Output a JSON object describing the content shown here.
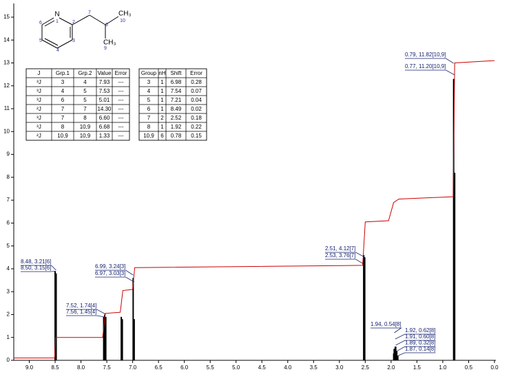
{
  "chart_data": {
    "type": "nmr",
    "xlim": [
      9.3,
      0
    ],
    "xticks": [
      {
        "value": 9,
        "label": "9.0"
      },
      8.5,
      {
        "value": 8,
        "label": "8.0"
      },
      7.5,
      {
        "value": 7,
        "label": "7.0"
      },
      6.5,
      {
        "value": 6,
        "label": "6.0"
      },
      5.5,
      {
        "value": 5,
        "label": "5.0"
      },
      4.5,
      {
        "value": 4,
        "label": "4.0"
      },
      3.5,
      {
        "value": 3,
        "label": "3.0"
      },
      2.5,
      {
        "value": 2,
        "label": "2.0"
      },
      1.5,
      {
        "value": 1,
        "label": "1.0"
      },
      0.5,
      {
        "value": 0,
        "label": "0.0"
      }
    ],
    "ylim": [
      0,
      15.6
    ],
    "yticks": [
      0,
      1,
      2,
      3,
      4,
      5,
      6,
      7,
      8,
      9,
      10,
      11,
      12,
      13,
      14,
      15
    ],
    "grid": false,
    "series": [
      {
        "style": "sticks",
        "color": "#000000",
        "x": [
          8.5,
          8.48,
          7.56,
          7.54,
          7.52,
          7.22,
          7.2,
          6.99,
          6.97,
          2.53,
          2.51,
          1.95,
          1.94,
          1.92,
          1.91,
          1.89,
          1.87,
          0.79,
          0.77
        ],
        "values": [
          3.9,
          3.8,
          1.9,
          2.0,
          1.9,
          1.9,
          1.8,
          3.6,
          1.8,
          4.6,
          4.5,
          0.3,
          0.5,
          0.6,
          0.6,
          0.4,
          0.2,
          12.3,
          8.2
        ]
      },
      {
        "style": "steps",
        "color": "#cc0000",
        "x": [
          9.3,
          8.51,
          8.49,
          7.58,
          7.53,
          7.24,
          7.19,
          7.0,
          6.96,
          2.55,
          2.5,
          2.05,
          1.95,
          1.85,
          0.8,
          0.77,
          0.0
        ],
        "values": [
          0.1,
          0.1,
          1.0,
          1.0,
          2.05,
          2.1,
          3.05,
          3.1,
          4.05,
          4.15,
          6.05,
          6.1,
          6.9,
          7.05,
          7.15,
          13.0,
          13.1
        ]
      }
    ],
    "annotations": [
      "8.48, 3.21[6]",
      "8.50, 3.15[6]",
      "7.52, 1.74[4]",
      "7.56, 1.45[4]",
      "6.99, 3.24[3]",
      "6.97, 3.03[3]",
      "2.51, 4.12[7]",
      "2.53, 3.76[7]",
      "1.94, 0.54[8]",
      "1.92, 0.62[8]",
      "1.91, 0.60[8]",
      "1.89, 0.32[8]",
      "1.87, 0.14[8]",
      "0.79, 11.82[10,9]",
      "0.77, 11.20[10,9]"
    ],
    "molecule": {
      "atoms": [
        "N",
        "CH₃",
        "CH₃"
      ],
      "numbers": [
        "1",
        "2",
        "3",
        "4",
        "5",
        "6",
        "7",
        "8",
        "9",
        "10"
      ]
    },
    "tables": [
      {
        "header": [
          "J",
          "Grp.1",
          "Grp.2",
          "Value",
          "Error"
        ],
        "rows": [
          [
            "³J",
            "3",
            "4",
            "7.93",
            "---"
          ],
          [
            "³J",
            "4",
            "5",
            "7.53",
            "---"
          ],
          [
            "³J",
            "6",
            "5",
            "5.01",
            "---"
          ],
          [
            "²J",
            "7",
            "7",
            "14.30",
            "---"
          ],
          [
            "³J",
            "7",
            "8",
            "6.60",
            "---"
          ],
          [
            "³J",
            "8",
            "10,9",
            "6.68",
            "---"
          ],
          [
            "²J",
            "10,9",
            "10,9",
            "1.33",
            "---"
          ]
        ]
      },
      {
        "header": [
          "Group",
          "nH",
          "Shift",
          "Error"
        ],
        "rows": [
          [
            "3",
            "1",
            "6.98",
            "0.28"
          ],
          [
            "4",
            "1",
            "7.54",
            "0.07"
          ],
          [
            "5",
            "1",
            "7.21",
            "0.04"
          ],
          [
            "6",
            "1",
            "8.49",
            "0.02"
          ],
          [
            "7",
            "2",
            "2.52",
            "0.18"
          ],
          [
            "8",
            "1",
            "1.92",
            "0.22"
          ],
          [
            "10,9",
            "6",
            "0.78",
            "0.15"
          ]
        ]
      }
    ]
  }
}
